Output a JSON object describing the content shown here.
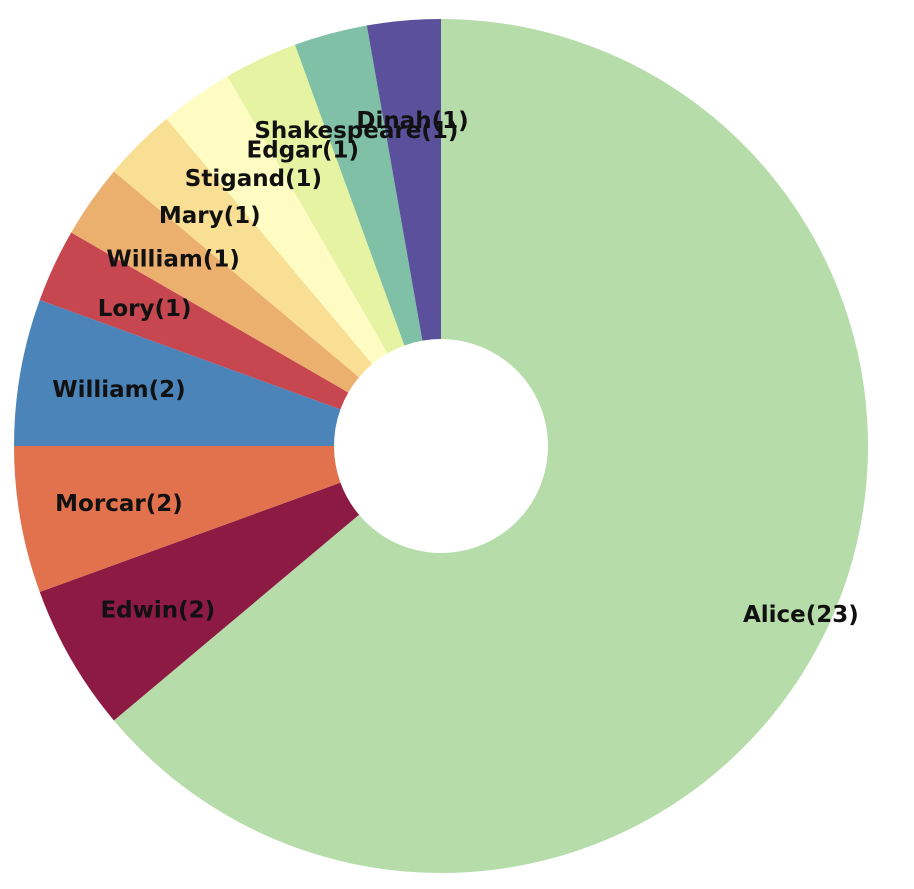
{
  "chart_data": {
    "type": "pie",
    "variant": "donut",
    "title": "",
    "start": "12 o'clock",
    "direction": "clockwise",
    "legend": "none",
    "slices": [
      {
        "label": "Alice(23)",
        "name": "Alice",
        "value": 23,
        "color": "#b5dca9"
      },
      {
        "label": "Edwin(2)",
        "name": "Edwin",
        "value": 2,
        "color": "#8c1a42"
      },
      {
        "label": "Morcar(2)",
        "name": "Morcar",
        "value": 2,
        "color": "#e2714e"
      },
      {
        "label": "William(2)",
        "name": "William",
        "value": 2,
        "color": "#4b84b8"
      },
      {
        "label": "Lory(1)",
        "name": "Lory",
        "value": 1,
        "color": "#c6474f"
      },
      {
        "label": "William(1)",
        "name": "William",
        "value": 1,
        "color": "#ecb06e"
      },
      {
        "label": "Mary(1)",
        "name": "Mary",
        "value": 1,
        "color": "#f8df93"
      },
      {
        "label": "Stigand(1)",
        "name": "Stigand",
        "value": 1,
        "color": "#fefcc2"
      },
      {
        "label": "Edgar(1)",
        "name": "Edgar",
        "value": 1,
        "color": "#e6f3a3"
      },
      {
        "label": "Shakespeare(1)",
        "name": "Shakespeare",
        "value": 1,
        "color": "#7fc0a6"
      },
      {
        "label": "Dinah(1)",
        "name": "Dinah",
        "value": 1,
        "color": "#5b509c"
      }
    ]
  }
}
